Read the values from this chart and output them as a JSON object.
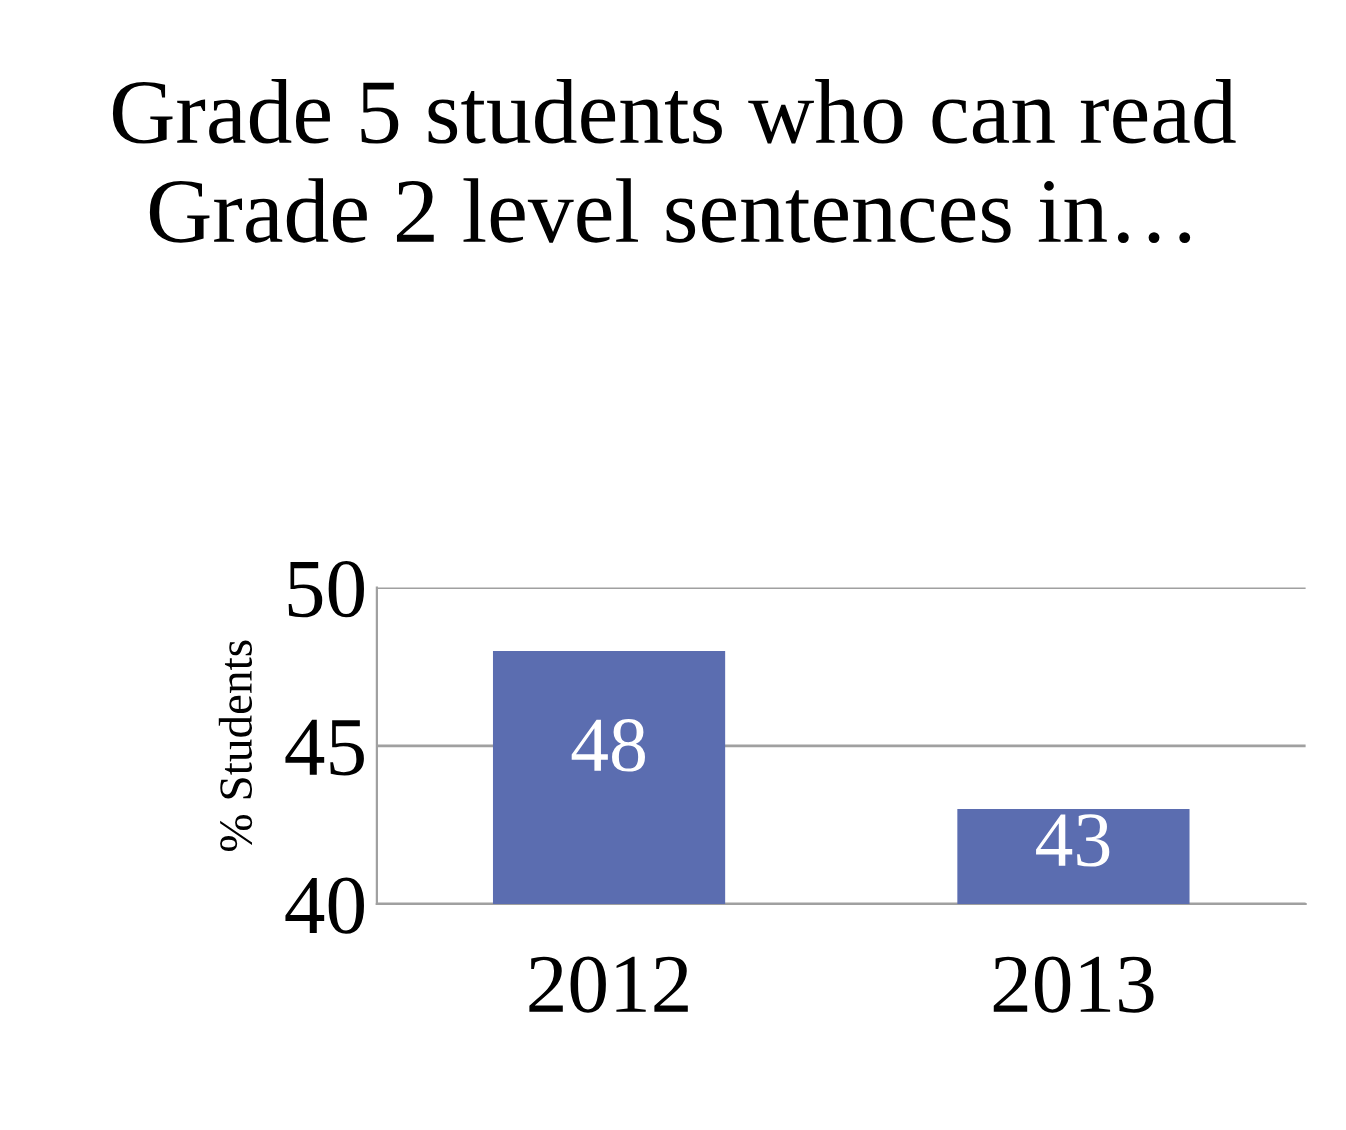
{
  "chart_data": {
    "type": "bar",
    "title": "Grade 5 students who can read Grade 2 level sentences in…",
    "ylabel": "% Students",
    "categories": [
      "2012",
      "2013"
    ],
    "values": [
      48,
      43
    ],
    "color": "#5b6db0",
    "ylim": [
      40,
      50
    ],
    "yticks": [
      40,
      45,
      50
    ],
    "grid": "y",
    "data_labels": true
  }
}
